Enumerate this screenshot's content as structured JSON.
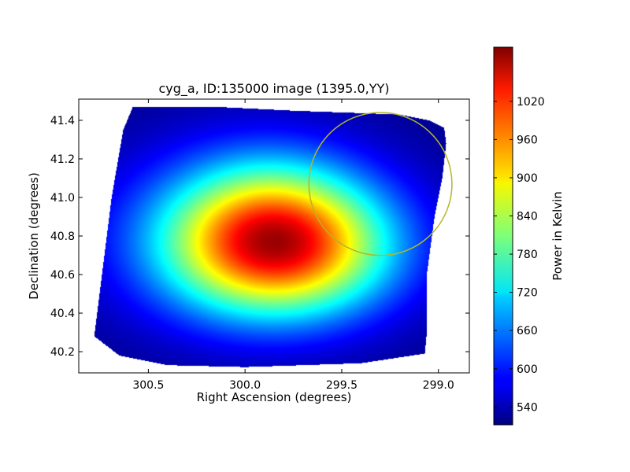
{
  "chart_data": {
    "type": "heatmap",
    "title": "cyg_a, ID:135000 image (1395.0,YY)",
    "xlabel": "Right Ascension (degrees)",
    "ylabel": "Declination (degrees)",
    "xlim": [
      300.86,
      298.84
    ],
    "ylim": [
      40.09,
      41.51
    ],
    "x_inverted": true,
    "xticks": [
      300.5,
      300.0,
      299.5,
      299.0
    ],
    "xtick_labels": [
      "300.5",
      "300.0",
      "299.5",
      "299.0"
    ],
    "yticks": [
      40.2,
      40.4,
      40.6,
      40.8,
      41.0,
      41.2,
      41.4
    ],
    "ytick_labels": [
      "40.2",
      "40.4",
      "40.6",
      "40.8",
      "41.0",
      "41.2",
      "41.4"
    ],
    "colormap": "jet",
    "colorbar": {
      "label": "Power in Kelvin",
      "range": [
        512,
        1105
      ],
      "ticks": [
        540,
        600,
        660,
        720,
        780,
        840,
        900,
        960,
        1020
      ],
      "tick_labels": [
        "540",
        "600",
        "660",
        "720",
        "780",
        "840",
        "900",
        "960",
        "1020"
      ]
    },
    "map_footprint": [
      [
        300.58,
        41.47
      ],
      [
        300.15,
        41.47
      ],
      [
        299.75,
        41.45
      ],
      [
        299.2,
        41.43
      ],
      [
        299.05,
        41.4
      ],
      [
        298.97,
        41.36
      ],
      [
        298.96,
        41.28
      ],
      [
        298.98,
        41.1
      ],
      [
        299.02,
        40.9
      ],
      [
        299.06,
        40.6
      ],
      [
        299.06,
        40.3
      ],
      [
        299.07,
        40.19
      ],
      [
        299.4,
        40.14
      ],
      [
        300.0,
        40.12
      ],
      [
        300.4,
        40.13
      ],
      [
        300.65,
        40.18
      ],
      [
        300.78,
        40.28
      ],
      [
        300.74,
        40.6
      ],
      [
        300.69,
        41.0
      ],
      [
        300.63,
        41.35
      ]
    ],
    "peak": {
      "ra": 299.82,
      "dec": 40.74,
      "value": 1105
    },
    "sources": [
      {
        "ra": 299.82,
        "dec": 40.74,
        "amp": 440,
        "sigma_ra": 0.4,
        "sigma_dec": 0.25
      },
      {
        "ra": 300.02,
        "dec": 40.82,
        "amp": 110,
        "sigma_ra": 0.5,
        "sigma_dec": 0.33
      },
      {
        "ra": 299.87,
        "dec": 41.02,
        "amp": 60,
        "sigma_ra": 0.32,
        "sigma_dec": 0.22
      }
    ],
    "background": 520,
    "circle": {
      "ra": 299.3,
      "dec": 41.07,
      "radius_deg": 0.37,
      "color": "#b5b52a"
    }
  }
}
